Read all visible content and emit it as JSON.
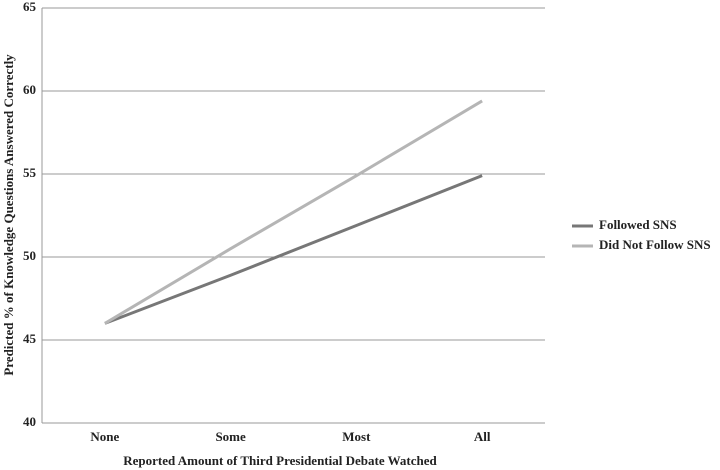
{
  "chart_data": {
    "type": "line",
    "x_label": "Reported Amount of Third Presidential Debate Watched",
    "y_label": "Predicted % of Knowledge Questions Answered Correctly",
    "categories": [
      "None",
      "Some",
      "Most",
      "All"
    ],
    "series": [
      {
        "name": "Followed SNS",
        "color": "#777777",
        "values": [
          46,
          48.9,
          51.9,
          54.9
        ]
      },
      {
        "name": "Did Not Follow SNS",
        "color": "#b5b5b5",
        "values": [
          46,
          50.5,
          54.9,
          59.4
        ]
      }
    ],
    "ylim": [
      40,
      65
    ],
    "yticks": [
      40,
      45,
      50,
      55,
      60,
      65
    ],
    "grid": true,
    "legend": "right"
  }
}
